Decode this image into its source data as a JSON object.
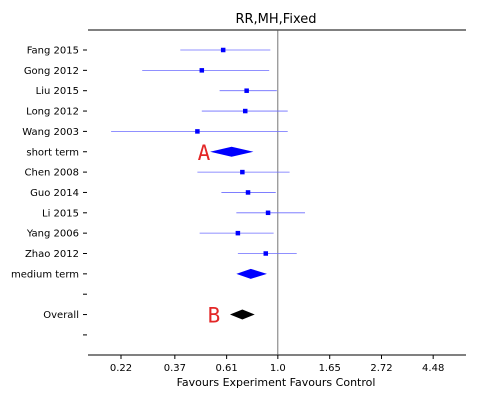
{
  "chart_data": {
    "type": "forest",
    "title": "RR,MH,Fixed",
    "xlabel": "Favours Experiment  Favours Control",
    "x_scale": "log",
    "xlim": [
      0.16,
      6.15
    ],
    "reference_line": 1.0,
    "xticks": [
      0.22,
      0.37,
      0.61,
      1.0,
      1.65,
      2.72,
      4.48
    ],
    "xtick_labels": [
      "0.22",
      "0.37",
      "0.61",
      "1.0",
      "1.65",
      "2.72",
      "4.48"
    ],
    "rows": [
      {
        "label": "Fang 2015",
        "kind": "study",
        "rr": 0.59,
        "lo": 0.39,
        "hi": 0.93
      },
      {
        "label": "Gong 2012",
        "kind": "study",
        "rr": 0.48,
        "lo": 0.27,
        "hi": 0.92
      },
      {
        "label": "Liu 2015",
        "kind": "study",
        "rr": 0.74,
        "lo": 0.57,
        "hi": 0.99
      },
      {
        "label": "Long 2012",
        "kind": "study",
        "rr": 0.73,
        "lo": 0.48,
        "hi": 1.1
      },
      {
        "label": "Wang 2003",
        "kind": "study",
        "rr": 0.46,
        "lo": 0.2,
        "hi": 1.1
      },
      {
        "label": "short term",
        "kind": "pooled",
        "rr": 0.64,
        "lo": 0.52,
        "hi": 0.79,
        "color": "#0000ff"
      },
      {
        "label": "Chen 2008",
        "kind": "study",
        "rr": 0.71,
        "lo": 0.46,
        "hi": 1.12
      },
      {
        "label": "Guo 2014",
        "kind": "study",
        "rr": 0.75,
        "lo": 0.58,
        "hi": 0.98
      },
      {
        "label": "Li 2015",
        "kind": "study",
        "rr": 0.91,
        "lo": 0.67,
        "hi": 1.3
      },
      {
        "label": "Yang 2006",
        "kind": "study",
        "rr": 0.68,
        "lo": 0.47,
        "hi": 0.96
      },
      {
        "label": "Zhao 2012",
        "kind": "study",
        "rr": 0.89,
        "lo": 0.68,
        "hi": 1.2
      },
      {
        "label": "medium term",
        "kind": "pooled",
        "rr": 0.77,
        "lo": 0.67,
        "hi": 0.9,
        "color": "#0000ff"
      },
      {
        "label": "",
        "kind": "blank"
      },
      {
        "label": "Overall",
        "kind": "pooled",
        "rr": 0.71,
        "lo": 0.63,
        "hi": 0.8,
        "color": "#000000"
      },
      {
        "label": "",
        "kind": "blank"
      }
    ],
    "annotations": [
      {
        "text": "A",
        "row": 5,
        "rr": 0.49
      },
      {
        "text": "B",
        "row": 13,
        "rr": 0.54
      }
    ],
    "colors": {
      "study": "#0000ff",
      "ci_line": "#6b6bff",
      "annotation": "#e32626",
      "axis": "#000000",
      "reference": "#555555"
    }
  }
}
